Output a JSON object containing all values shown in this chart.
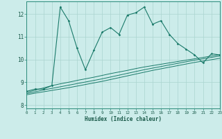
{
  "xlabel": "Humidex (Indice chaleur)",
  "background_color": "#ccecea",
  "grid_color": "#aad4d0",
  "line_color": "#1a7a6a",
  "x_data": [
    0,
    1,
    2,
    3,
    4,
    5,
    6,
    7,
    8,
    9,
    10,
    11,
    12,
    13,
    14,
    15,
    16,
    17,
    18,
    19,
    20,
    21,
    22,
    23
  ],
  "series1": [
    8.6,
    8.7,
    8.7,
    8.85,
    12.3,
    11.7,
    10.5,
    9.55,
    10.4,
    11.2,
    11.4,
    11.1,
    11.95,
    12.05,
    12.3,
    11.55,
    11.7,
    11.1,
    10.7,
    10.45,
    10.2,
    9.85,
    10.25,
    10.2
  ],
  "series2": [
    8.55,
    8.65,
    8.75,
    8.85,
    8.93,
    9.0,
    9.08,
    9.15,
    9.22,
    9.3,
    9.38,
    9.45,
    9.52,
    9.6,
    9.67,
    9.73,
    9.79,
    9.85,
    9.91,
    9.97,
    10.03,
    10.09,
    10.15,
    10.21
  ],
  "series3": [
    8.5,
    8.58,
    8.66,
    8.73,
    8.8,
    8.87,
    8.94,
    9.01,
    9.08,
    9.15,
    9.23,
    9.31,
    9.39,
    9.47,
    9.55,
    9.62,
    9.69,
    9.76,
    9.83,
    9.9,
    9.97,
    10.03,
    10.09,
    10.15
  ],
  "series4": [
    8.45,
    8.52,
    8.58,
    8.64,
    8.7,
    8.76,
    8.83,
    8.9,
    8.97,
    9.04,
    9.12,
    9.2,
    9.28,
    9.36,
    9.44,
    9.52,
    9.59,
    9.66,
    9.73,
    9.8,
    9.87,
    9.93,
    9.99,
    10.05
  ],
  "xlim": [
    0,
    23
  ],
  "ylim": [
    7.85,
    12.55
  ],
  "yticks": [
    8,
    9,
    10,
    11,
    12
  ],
  "xticks": [
    0,
    1,
    2,
    3,
    4,
    5,
    6,
    7,
    8,
    9,
    10,
    11,
    12,
    13,
    14,
    15,
    16,
    17,
    18,
    19,
    20,
    21,
    22,
    23
  ]
}
